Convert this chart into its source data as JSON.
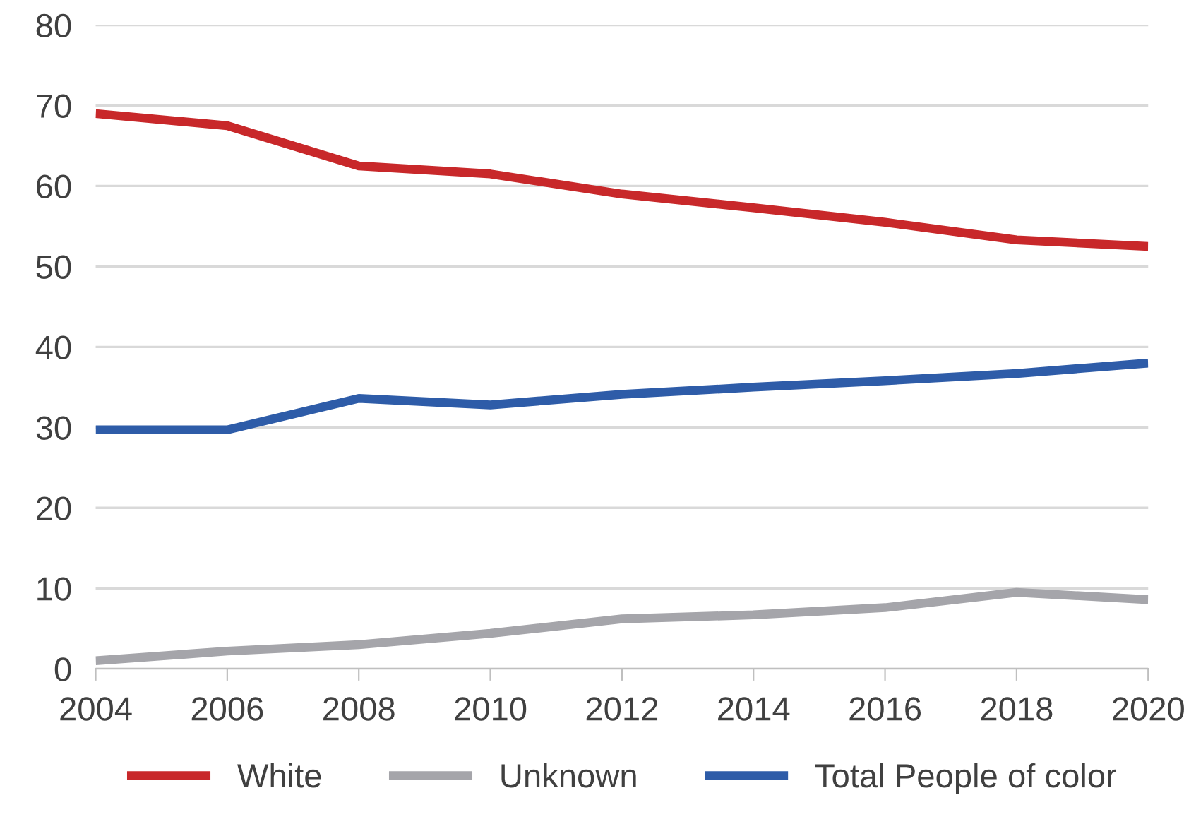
{
  "chart_data": {
    "type": "line",
    "x": [
      2004,
      2006,
      2008,
      2010,
      2012,
      2014,
      2016,
      2018,
      2020
    ],
    "series": [
      {
        "name": "White",
        "color": "#c8282a",
        "values": [
          69,
          67.5,
          62.5,
          61.5,
          59,
          57.3,
          55.5,
          53.3,
          52.5
        ]
      },
      {
        "name": "Unknown",
        "color": "#a5a5aa",
        "values": [
          1,
          2.2,
          3,
          4.4,
          6.2,
          6.7,
          7.6,
          9.5,
          8.6
        ]
      },
      {
        "name": "Total People of color",
        "color": "#2e5ca8",
        "values": [
          29.7,
          29.7,
          33.6,
          32.8,
          34.1,
          35,
          35.8,
          36.7,
          38
        ]
      }
    ],
    "xlim": [
      2004,
      2020
    ],
    "xticks": [
      2004,
      2006,
      2008,
      2010,
      2012,
      2014,
      2016,
      2018,
      2020
    ],
    "ylim": [
      0,
      80
    ],
    "yticks": [
      0,
      10,
      20,
      30,
      40,
      50,
      60,
      70,
      80
    ],
    "grid": "y",
    "legend": "bottom",
    "marker": "none",
    "line_style": "solid"
  }
}
